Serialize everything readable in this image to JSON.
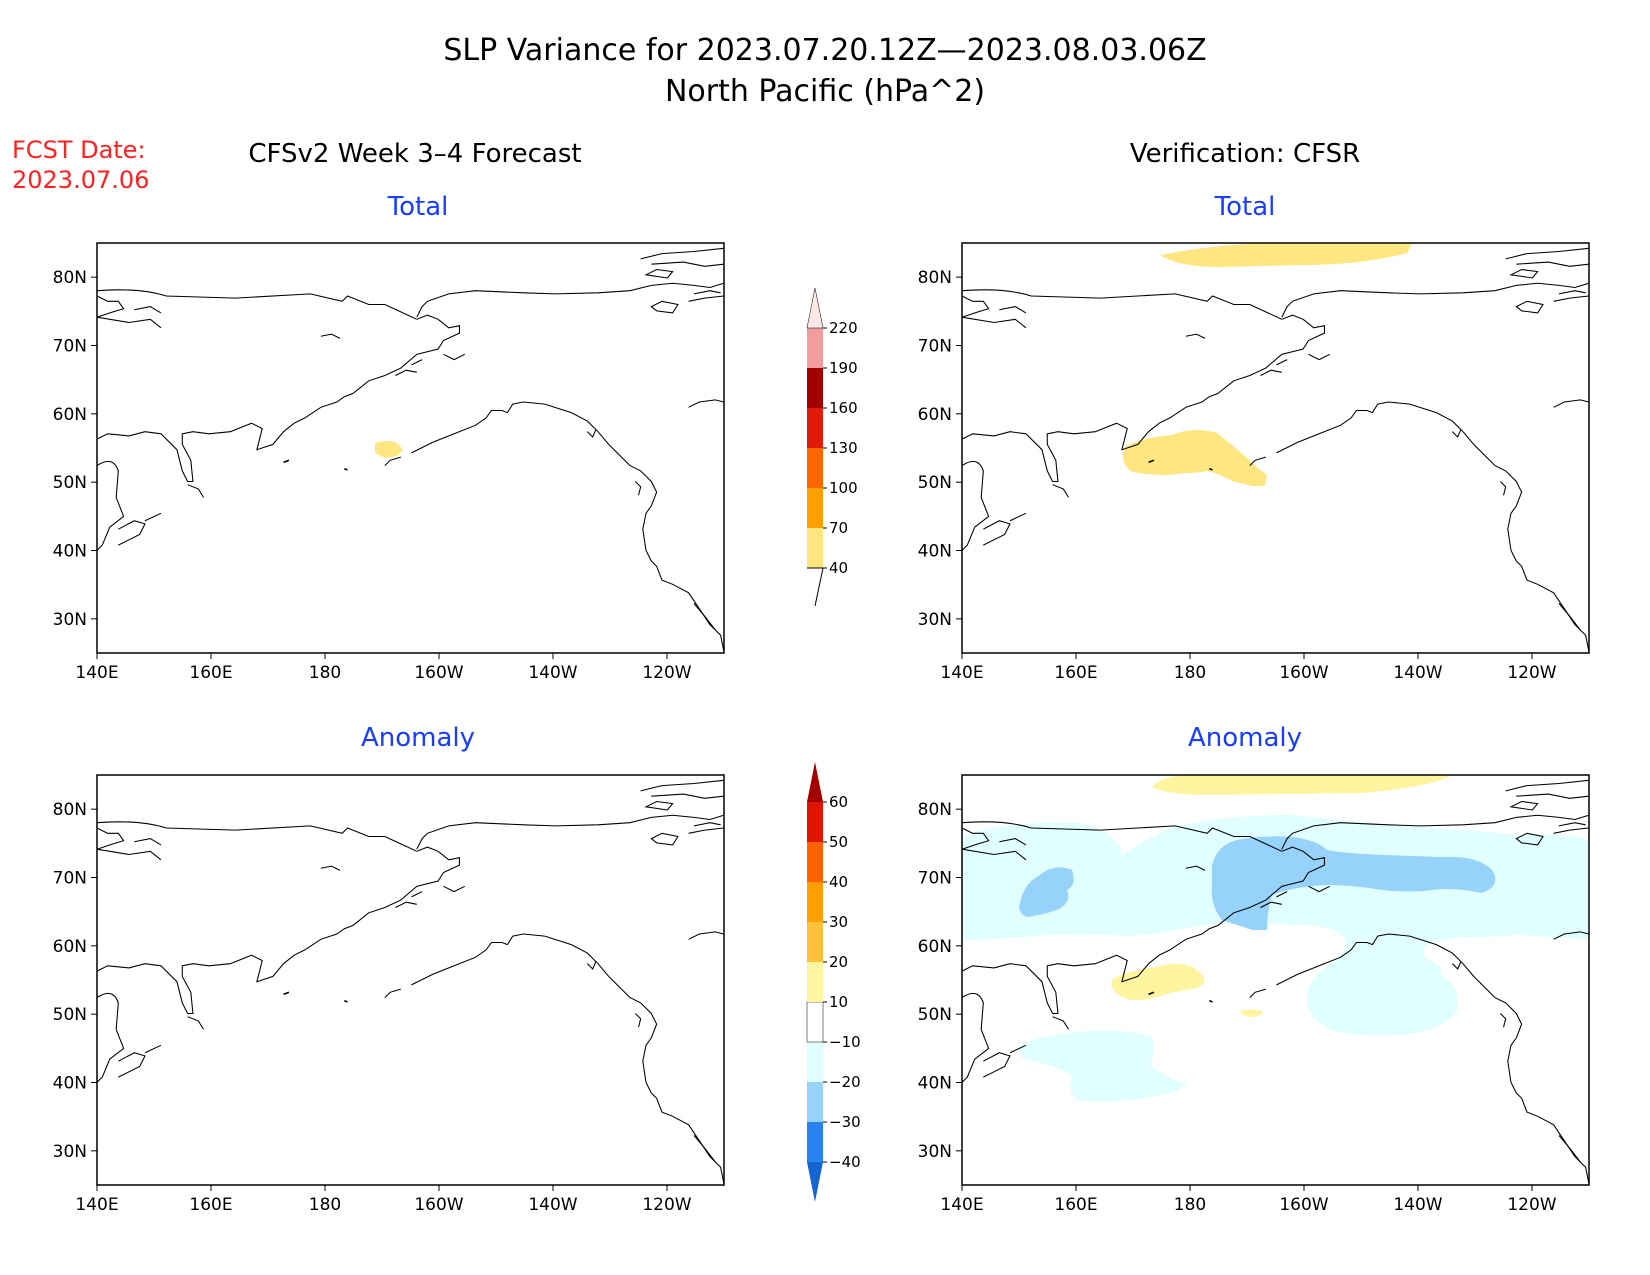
{
  "title": {
    "line1": "SLP Variance for 2023.07.20.12Z—2023.08.03.06Z",
    "line2": "North Pacific (hPa^2)"
  },
  "fcst_date": {
    "label": "FCST Date:",
    "value": "2023.07.06"
  },
  "columns": {
    "left": "CFSv2 Week 3–4 Forecast",
    "right": "Verification: CFSR"
  },
  "panels": [
    {
      "id": "fcst-total",
      "title": "Total",
      "shading": [
        {
          "class": "40-70",
          "region": "small patch near 53N 170W"
        }
      ]
    },
    {
      "id": "cfsr-total",
      "title": "Total",
      "shading": [
        {
          "class": "40-70",
          "region": "band along 84N"
        },
        {
          "class": "40-70",
          "region": "Bering Sea / Aleutians 50-57N"
        }
      ]
    },
    {
      "id": "fcst-anom",
      "title": "Anomaly",
      "shading": []
    },
    {
      "id": "cfsr-anom",
      "title": "Anomaly",
      "shading": [
        {
          "class": "10-20",
          "region": "band along 84N"
        },
        {
          "class": "-20--10",
          "region": "Arctic coast 62-77N, Gulf of Alaska, 40-45N west Pacific"
        },
        {
          "class": "-30--20",
          "region": "Chukchi / Beaufort 65-75N and east Siberia 67-72N"
        },
        {
          "class": "10-20",
          "region": "Bering Sea near 53N 180"
        }
      ]
    }
  ],
  "axes": {
    "lat_ticks": [
      "30N",
      "40N",
      "50N",
      "60N",
      "70N",
      "80N"
    ],
    "lon_ticks": [
      "140E",
      "160E",
      "180",
      "160W",
      "140W",
      "120W"
    ],
    "lat_range": [
      25,
      85
    ],
    "lon_range": [
      140,
      250
    ]
  },
  "colorbar_total": {
    "levels": [
      "40",
      "70",
      "100",
      "130",
      "160",
      "190",
      "220"
    ],
    "colors": [
      "#ffe680",
      "#ffa000",
      "#ff6600",
      "#e11a0a",
      "#a50000",
      "#f19d9d",
      "#ffe7e7"
    ]
  },
  "colorbar_anomaly": {
    "levels": [
      "−40",
      "−30",
      "−20",
      "−10",
      "10",
      "20",
      "30",
      "40",
      "50",
      "60"
    ],
    "colors": [
      "#1464d2",
      "#2882f0",
      "#96d2fa",
      "#e1ffff",
      "#ffffff",
      "#fff5a0",
      "#ffc03c",
      "#ffa000",
      "#ff6000",
      "#e11400",
      "#a50000"
    ]
  },
  "colors": {
    "title": "#000000",
    "panel_title": "#1a3cff",
    "fcst_date": "#ff2020"
  }
}
